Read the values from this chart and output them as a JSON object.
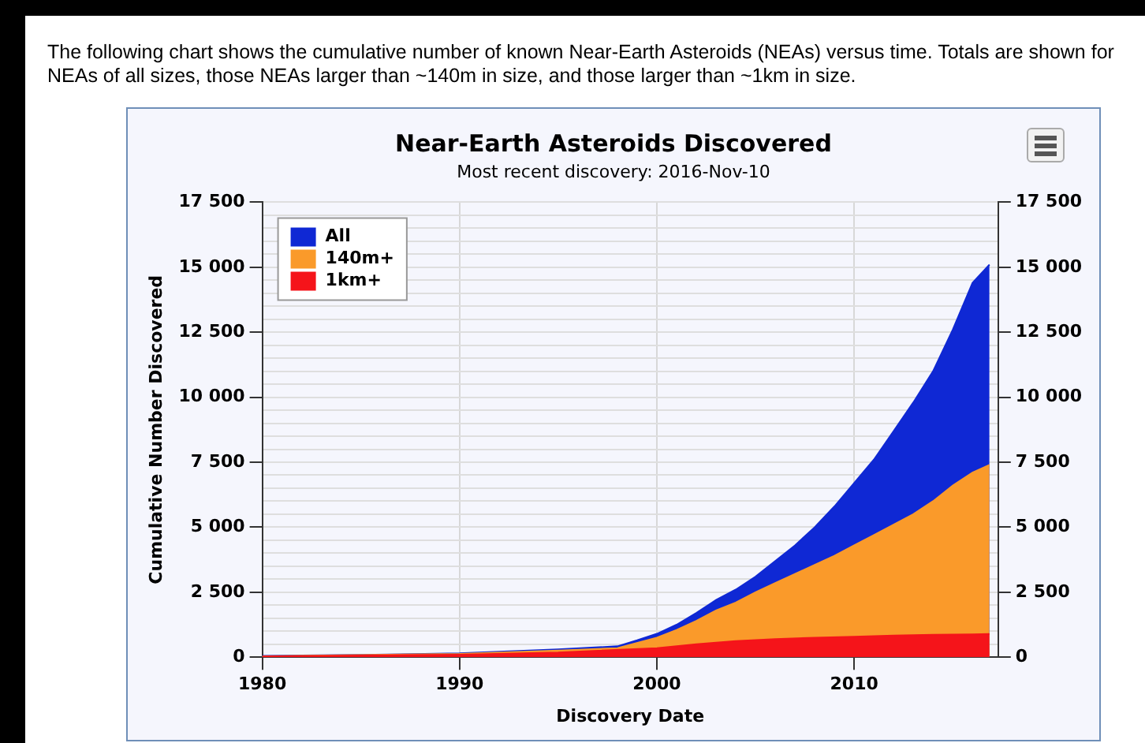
{
  "chart_data": {
    "type": "area",
    "title": "Near-Earth Asteroids Discovered",
    "subtitle": "Most recent discovery: 2016-Nov-10",
    "xlabel": "Discovery Date",
    "ylabel": "Cumulative Number Discovered",
    "annotations": [
      "The following chart shows the cumulative number of known Near-Earth Asteroids (NEAs) versus time. Totals are shown for NEAs of all sizes, those NEAs larger than ~140m in size, and those larger than ~1km in size."
    ],
    "series": [
      {
        "name": "All",
        "color": "#0f28d4",
        "x": [
          1980,
          1985,
          1990,
          1995,
          1998,
          1999,
          2000,
          2001,
          2002,
          2003,
          2004,
          2005,
          2006,
          2007,
          2008,
          2009,
          2010,
          2011,
          2012,
          2013,
          2014,
          2015,
          2016,
          2016.86
        ],
        "values": [
          50,
          90,
          150,
          300,
          420,
          650,
          900,
          1250,
          1700,
          2200,
          2600,
          3100,
          3700,
          4300,
          5000,
          5800,
          6700,
          7600,
          8700,
          9800,
          11000,
          12600,
          14400,
          15100
        ]
      },
      {
        "name": "140m+",
        "color": "#fa9a2a",
        "x": [
          1980,
          1990,
          1995,
          1998,
          2000,
          2001,
          2002,
          2003,
          2004,
          2005,
          2006,
          2007,
          2008,
          2009,
          2010,
          2011,
          2012,
          2013,
          2014,
          2015,
          2016,
          2016.86
        ],
        "values": [
          40,
          130,
          260,
          350,
          750,
          1050,
          1400,
          1800,
          2100,
          2500,
          2850,
          3200,
          3550,
          3900,
          4300,
          4700,
          5100,
          5500,
          6000,
          6600,
          7100,
          7400
        ]
      },
      {
        "name": "1km+",
        "color": "#f5141a",
        "x": [
          1980,
          1990,
          1995,
          2000,
          2002,
          2004,
          2006,
          2008,
          2010,
          2012,
          2014,
          2016,
          2016.86
        ],
        "values": [
          30,
          100,
          180,
          350,
          500,
          620,
          700,
          750,
          790,
          830,
          860,
          880,
          890
        ]
      }
    ],
    "xlim": [
      1980,
      2017.3
    ],
    "xticks": [
      1980,
      1990,
      2000,
      2010
    ],
    "ylim": [
      0,
      17500
    ],
    "yticks": [
      0,
      {
        "value": 500,
        "label": null
      },
      {
        "value": 1000,
        "label": null
      },
      {
        "value": 1500,
        "label": null
      },
      {
        "value": 2000,
        "label": null
      },
      {
        "value": 2500,
        "label": "2 500"
      },
      {
        "value": 3000,
        "label": null
      },
      {
        "value": 3500,
        "label": null
      },
      {
        "value": 4000,
        "label": null
      },
      {
        "value": 4500,
        "label": null
      },
      {
        "value": 5000,
        "label": "5 000"
      },
      {
        "value": 5500,
        "label": null
      },
      {
        "value": 6000,
        "label": null
      },
      {
        "value": 6500,
        "label": null
      },
      {
        "value": 7000,
        "label": null
      },
      {
        "value": 7500,
        "label": "7 500"
      },
      {
        "value": 8000,
        "label": null
      },
      {
        "value": 8500,
        "label": null
      },
      {
        "value": 9000,
        "label": null
      },
      {
        "value": 9500,
        "label": null
      },
      {
        "value": 10000,
        "label": "10 000"
      },
      {
        "value": 10500,
        "label": null
      },
      {
        "value": 11000,
        "label": null
      },
      {
        "value": 11500,
        "label": null
      },
      {
        "value": 12000,
        "label": null
      },
      {
        "value": 12500,
        "label": "12 500"
      },
      {
        "value": 13000,
        "label": null
      },
      {
        "value": 13500,
        "label": null
      },
      {
        "value": 14000,
        "label": null
      },
      {
        "value": 14500,
        "label": null
      },
      {
        "value": 15000,
        "label": "15 000"
      },
      {
        "value": 15500,
        "label": null
      },
      {
        "value": 16000,
        "label": null
      },
      {
        "value": 16500,
        "label": null
      },
      {
        "value": 17000,
        "label": null
      },
      {
        "value": 17500,
        "label": "17 500"
      }
    ],
    "y2lim": [
      0,
      17500
    ],
    "y2ticks": [
      0,
      {
        "value": 2500,
        "label": "2 500"
      },
      {
        "value": 5000,
        "label": "5 000"
      },
      {
        "value": 7500,
        "label": "7 500"
      },
      {
        "value": 10000,
        "label": "10 000"
      },
      {
        "value": 12500,
        "label": "12 500"
      },
      {
        "value": 15000,
        "label": "15 000"
      },
      {
        "value": 17500,
        "label": "17 500"
      }
    ],
    "grid": true,
    "legend": "top left"
  }
}
